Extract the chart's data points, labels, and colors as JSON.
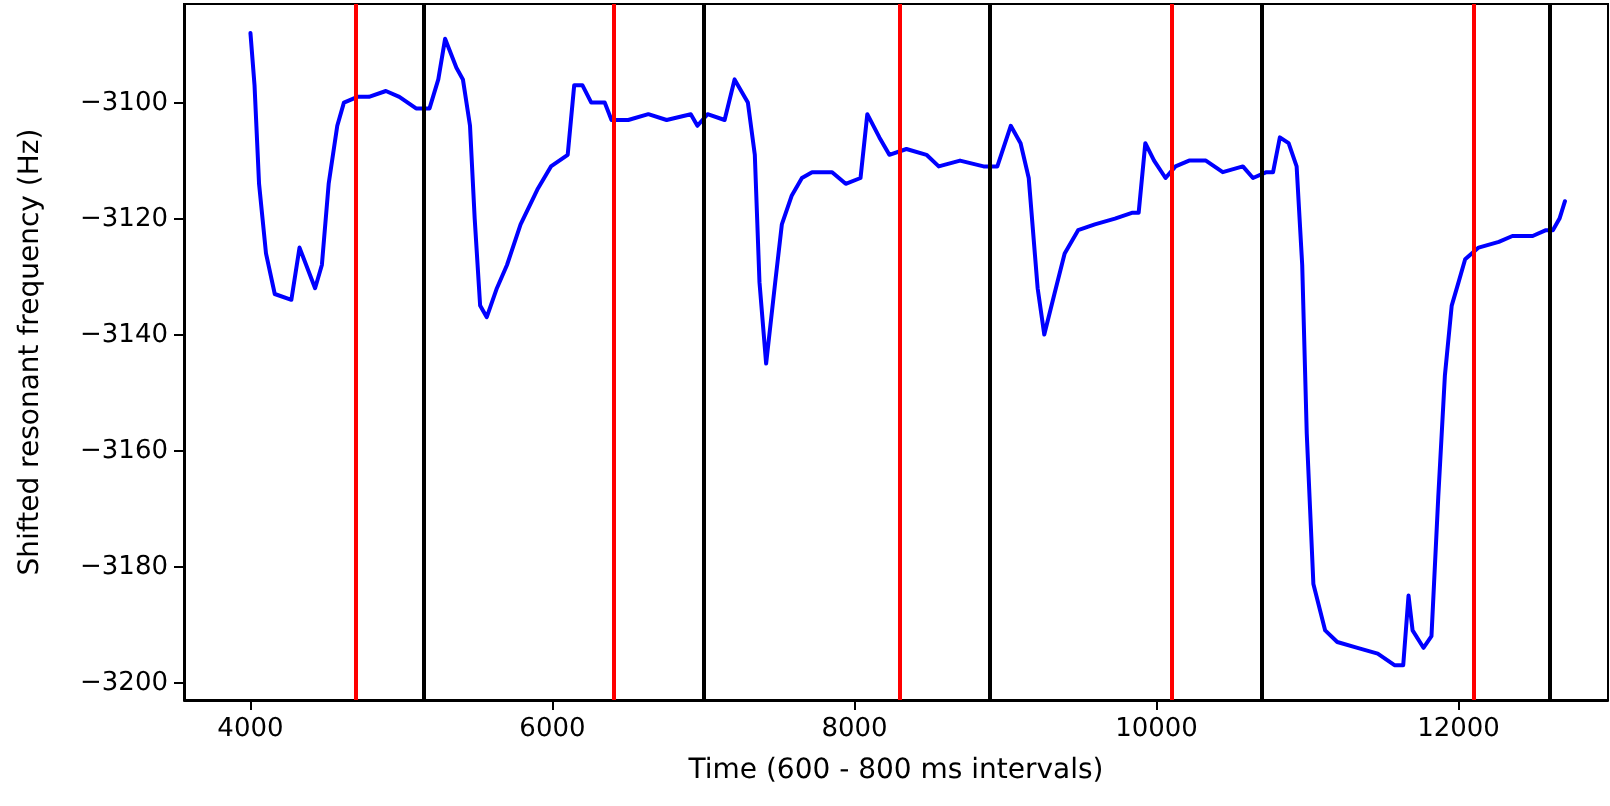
{
  "chart_data": {
    "type": "line",
    "xlabel": "Time (600 - 800 ms intervals)",
    "ylabel": "Shifted resonant frequency (Hz)",
    "xlim": [
      3560,
      12990
    ],
    "ylim": [
      -3203,
      -3083
    ],
    "xticks": [
      4000,
      6000,
      8000,
      10000,
      12000
    ],
    "yticks": [
      -3200,
      -3180,
      -3160,
      -3140,
      -3120,
      -3100
    ],
    "grid": false,
    "marker": "none",
    "line_style": "solid",
    "series": [
      {
        "color": "#0000ff",
        "x": [
          4000,
          4027,
          4057,
          4103,
          4161,
          4271,
          4325,
          4428,
          4473,
          4518,
          4575,
          4619,
          4709,
          4785,
          4897,
          4986,
          5097,
          5186,
          5244,
          5289,
          5364,
          5407,
          5454,
          5485,
          5521,
          5565,
          5632,
          5699,
          5789,
          5900,
          5990,
          6101,
          6144,
          6198,
          6257,
          6346,
          6391,
          6502,
          6635,
          6756,
          6916,
          6960,
          7027,
          7140,
          7206,
          7294,
          7340,
          7371,
          7415,
          7475,
          7519,
          7585,
          7652,
          7719,
          7852,
          7942,
          8040,
          8085,
          8165,
          8231,
          8344,
          8477,
          8558,
          8699,
          8855,
          8946,
          9035,
          9100,
          9154,
          9213,
          9257,
          9324,
          9392,
          9481,
          9592,
          9725,
          9837,
          9882,
          9926,
          9984,
          10060,
          10126,
          10216,
          10327,
          10439,
          10572,
          10639,
          10728,
          10772,
          10817,
          10875,
          10928,
          10965,
          10995,
          11039,
          11117,
          11197,
          11331,
          11465,
          11576,
          11634,
          11669,
          11696,
          11768,
          11821,
          11866,
          11910,
          11955,
          12000,
          12044,
          12133,
          12267,
          12357,
          12491,
          12579,
          12625,
          12669,
          12705
        ],
        "values": [
          -3088,
          -3097,
          -3114,
          -3126,
          -3133,
          -3134,
          -3125,
          -3132,
          -3128,
          -3114,
          -3104,
          -3100,
          -3099,
          -3099,
          -3098,
          -3099,
          -3101,
          -3101,
          -3096,
          -3089,
          -3094,
          -3096,
          -3104,
          -3120,
          -3135,
          -3137,
          -3132,
          -3128,
          -3121,
          -3115,
          -3111,
          -3109,
          -3097,
          -3097,
          -3100,
          -3100,
          -3103,
          -3103,
          -3102,
          -3103,
          -3102,
          -3104,
          -3102,
          -3103,
          -3096,
          -3100,
          -3109,
          -3131,
          -3145,
          -3131,
          -3121,
          -3116,
          -3113,
          -3112,
          -3112,
          -3114,
          -3113,
          -3102,
          -3106,
          -3109,
          -3108,
          -3109,
          -3111,
          -3110,
          -3111,
          -3111,
          -3104,
          -3107,
          -3113,
          -3132,
          -3140,
          -3133,
          -3126,
          -3122,
          -3121,
          -3120,
          -3119,
          -3119,
          -3107,
          -3110,
          -3113,
          -3111,
          -3110,
          -3110,
          -3112,
          -3111,
          -3113,
          -3112,
          -3112,
          -3106,
          -3107,
          -3111,
          -3128,
          -3157,
          -3183,
          -3191,
          -3193,
          -3194,
          -3195,
          -3197,
          -3197,
          -3185,
          -3191,
          -3194,
          -3192,
          -3168,
          -3147,
          -3135,
          -3131,
          -3127,
          -3125,
          -3124,
          -3123,
          -3123,
          -3122,
          -3122,
          -3120,
          -3117
        ]
      }
    ],
    "ref_lines": [
      {
        "axis": "x",
        "value": 4700,
        "color": "#ff0000"
      },
      {
        "axis": "x",
        "value": 5150,
        "color": "#000000"
      },
      {
        "axis": "x",
        "value": 6400,
        "color": "#ff0000"
      },
      {
        "axis": "x",
        "value": 7000,
        "color": "#000000"
      },
      {
        "axis": "x",
        "value": 8300,
        "color": "#ff0000"
      },
      {
        "axis": "x",
        "value": 8900,
        "color": "#000000"
      },
      {
        "axis": "x",
        "value": 10100,
        "color": "#ff0000"
      },
      {
        "axis": "x",
        "value": 10700,
        "color": "#000000"
      },
      {
        "axis": "x",
        "value": 12100,
        "color": "#ff0000"
      },
      {
        "axis": "x",
        "value": 12600,
        "color": "#000000"
      }
    ]
  }
}
